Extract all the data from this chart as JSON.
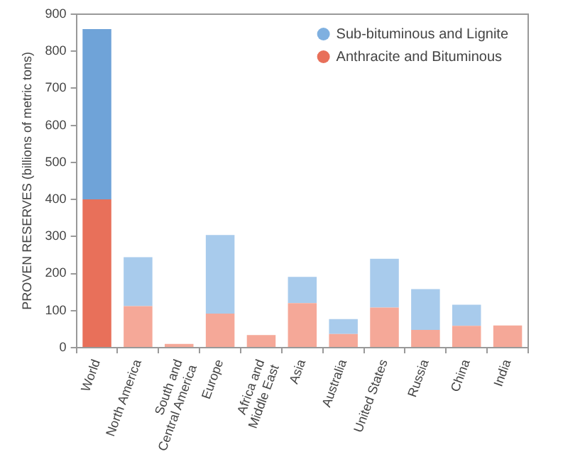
{
  "chart_data": {
    "type": "bar",
    "stacked": true,
    "ylabel": "PROVEN RESERVES (billions of metric tons)",
    "categories": [
      "World",
      "North America",
      "South and Central America",
      "Europe",
      "Africa and Middle East",
      "Asia",
      "Australia",
      "United States",
      "Russia",
      "China",
      "India"
    ],
    "series": [
      {
        "name": "Anthracite and Bituminous",
        "color": "#e8705a",
        "colors": [
          "#e8705a",
          "#f5a898",
          "#f5a898",
          "#f5a898",
          "#f5a898",
          "#f5a898",
          "#f5a898",
          "#f5a898",
          "#f5a898",
          "#f5a898",
          "#f5a898"
        ],
        "values": [
          400,
          112,
          10,
          92,
          34,
          120,
          37,
          108,
          48,
          59,
          60
        ]
      },
      {
        "name": "Sub-bituminous and Lignite",
        "color": "#7fb0e0",
        "colors": [
          "#6fa3d8",
          "#a8cbec",
          "#a8cbec",
          "#a8cbec",
          "#a8cbec",
          "#a8cbec",
          "#a8cbec",
          "#a8cbec",
          "#a8cbec",
          "#a8cbec",
          "#a8cbec"
        ],
        "values": [
          460,
          132,
          0,
          212,
          0,
          71,
          40,
          132,
          110,
          57,
          0
        ]
      }
    ],
    "ylim": [
      0,
      900
    ],
    "yticks": [
      0,
      100,
      200,
      300,
      400,
      500,
      600,
      700,
      800,
      900
    ],
    "grid": false,
    "legend": "top right"
  }
}
